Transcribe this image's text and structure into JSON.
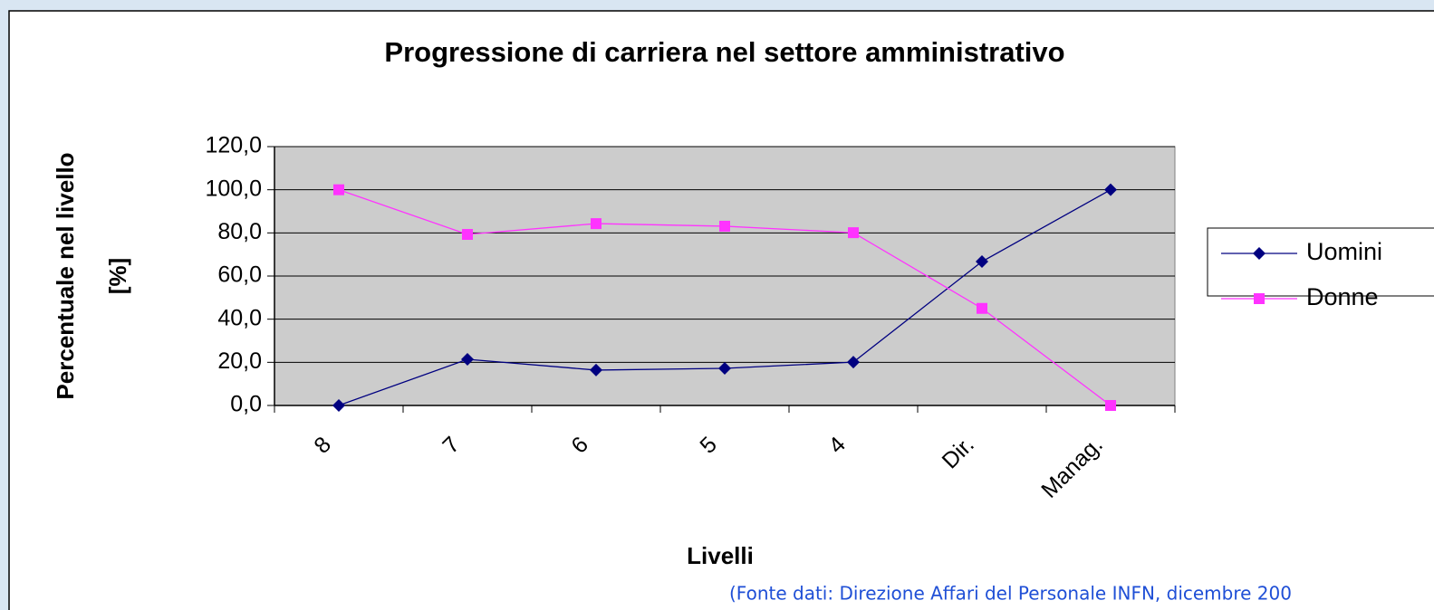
{
  "chart_data": {
    "type": "line",
    "title": "Progressione di carriera nel settore amministrativo",
    "xlabel": "Livelli",
    "ylabel": [
      "Percentuale nel livello",
      "[%]"
    ],
    "note": "(Fonte dati: Direzione Affari del Personale INFN, dicembre 200",
    "categories": [
      "8",
      "7",
      "6",
      "5",
      "4",
      "Dir.",
      "Manag."
    ],
    "series": [
      {
        "name": "Uomini",
        "color": "#000080",
        "marker": "diamond",
        "values": [
          0,
          21.4,
          16.4,
          17.2,
          20.1,
          66.7,
          100
        ]
      },
      {
        "name": "Donne",
        "color": "#ff33ff",
        "marker": "square",
        "values": [
          100,
          79.3,
          84.3,
          83.1,
          80.1,
          45,
          0
        ]
      }
    ],
    "ylim": [
      0,
      120
    ],
    "yticks": [
      {
        "value": 0,
        "label": "0,0"
      },
      {
        "value": 20,
        "label": "20,0"
      },
      {
        "value": 40,
        "label": "40,0"
      },
      {
        "value": 60,
        "label": "60,0"
      },
      {
        "value": 80,
        "label": "80,0"
      },
      {
        "value": 100,
        "label": "100,0"
      },
      {
        "value": 120,
        "label": "120,0"
      }
    ],
    "grid": true,
    "plot_background": "#cccccc",
    "legend": "right"
  }
}
